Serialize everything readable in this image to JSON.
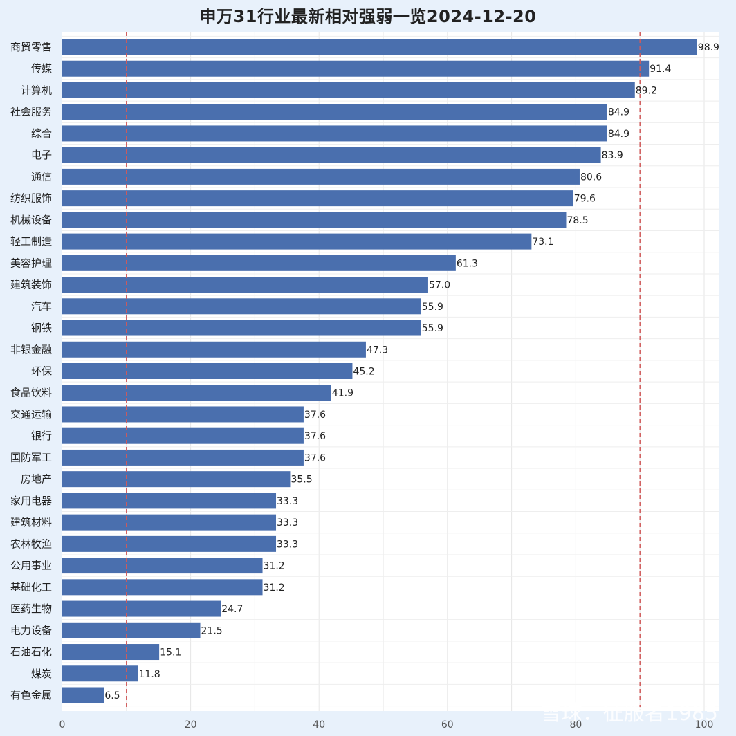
{
  "chart_data": {
    "type": "bar",
    "orientation": "horizontal",
    "title": "申万31行业最新相对强弱一览2024-12-20",
    "xlim": [
      0,
      105
    ],
    "xticks": [
      0,
      20,
      40,
      60,
      80,
      100
    ],
    "reference_lines": [
      10,
      90
    ],
    "grid": true,
    "bar_color": "#4a6fae",
    "reference_line_color": "#d05a5a",
    "categories": [
      "商贸零售",
      "传媒",
      "计算机",
      "社会服务",
      "综合",
      "电子",
      "通信",
      "纺织服饰",
      "机械设备",
      "轻工制造",
      "美容护理",
      "建筑装饰",
      "汽车",
      "钢铁",
      "非银金融",
      "环保",
      "食品饮料",
      "交通运输",
      "银行",
      "国防军工",
      "房地产",
      "家用电器",
      "建筑材料",
      "农林牧渔",
      "公用事业",
      "基础化工",
      "医药生物",
      "电力设备",
      "石油石化",
      "煤炭",
      "有色金属"
    ],
    "values": [
      98.9,
      91.4,
      89.2,
      84.9,
      84.9,
      83.9,
      80.6,
      79.6,
      78.5,
      73.1,
      61.3,
      57.0,
      55.9,
      55.9,
      47.3,
      45.2,
      41.9,
      37.6,
      37.6,
      37.6,
      35.5,
      33.3,
      33.3,
      33.3,
      31.2,
      31.2,
      24.7,
      21.5,
      15.1,
      11.8,
      6.5
    ],
    "value_labels": [
      "98.9",
      "91.4",
      "89.2",
      "84.9",
      "84.9",
      "83.9",
      "80.6",
      "79.6",
      "78.5",
      "73.1",
      "61.3",
      "57.0",
      "55.9",
      "55.9",
      "47.3",
      "45.2",
      "41.9",
      "37.6",
      "37.6",
      "37.6",
      "35.5",
      "33.3",
      "33.3",
      "33.3",
      "31.2",
      "31.2",
      "24.7",
      "21.5",
      "15.1",
      "11.8",
      "6.5"
    ]
  },
  "watermark": "雪球：征服者1985"
}
